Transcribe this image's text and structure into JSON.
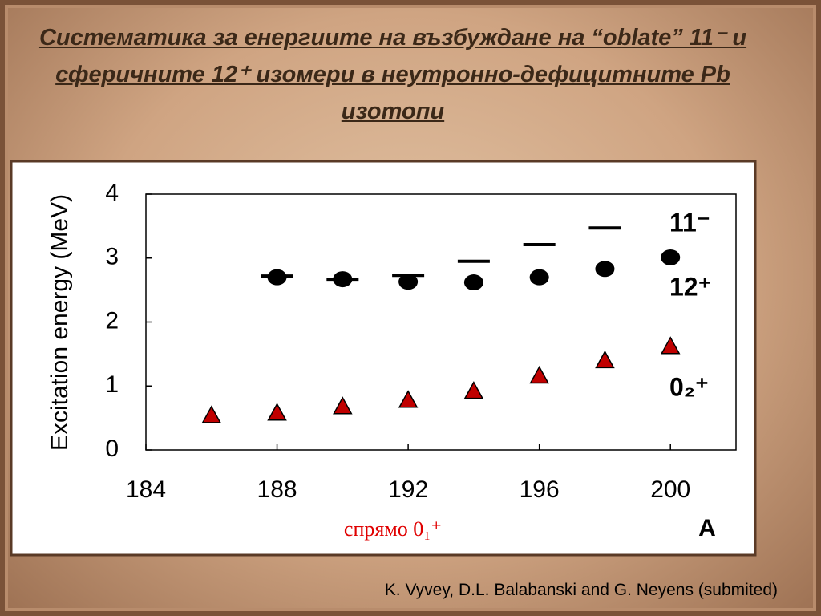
{
  "slide_title": "Систематика за енергиите на възбуждане на “oblate” 11⁻ и сферичните 12⁺ изомери в неутронно-дефицитните  Pb изотопи",
  "citation": "K. Vyvey, D.L. Balabanski and G. Neyens (submited)",
  "chart_data": {
    "type": "scatter",
    "ylabel": "Excitation energy (MeV)",
    "xlabel": "A",
    "note": "спрямо 0₁⁺",
    "x": [
      186,
      188,
      190,
      192,
      194,
      196,
      198,
      200
    ],
    "series": [
      {
        "name": "11⁻",
        "color": "#000000",
        "marker": "dash",
        "values": [
          null,
          2.72,
          2.67,
          2.73,
          2.95,
          3.21,
          3.47,
          null
        ]
      },
      {
        "name": "12⁺",
        "color": "#000000",
        "marker": "circle",
        "values": [
          null,
          2.7,
          2.67,
          2.63,
          2.62,
          2.7,
          2.83,
          3.01
        ]
      },
      {
        "name": "0₂⁺",
        "color": "#c00000",
        "marker": "triangle",
        "values": [
          0.54,
          0.58,
          0.68,
          0.78,
          0.92,
          1.16,
          1.4,
          1.62
        ]
      }
    ],
    "xlim": [
      184,
      202
    ],
    "ylim": [
      0,
      4
    ],
    "xticks": [
      184,
      188,
      192,
      196,
      200
    ],
    "yticks": [
      0,
      1,
      2,
      3,
      4
    ]
  }
}
